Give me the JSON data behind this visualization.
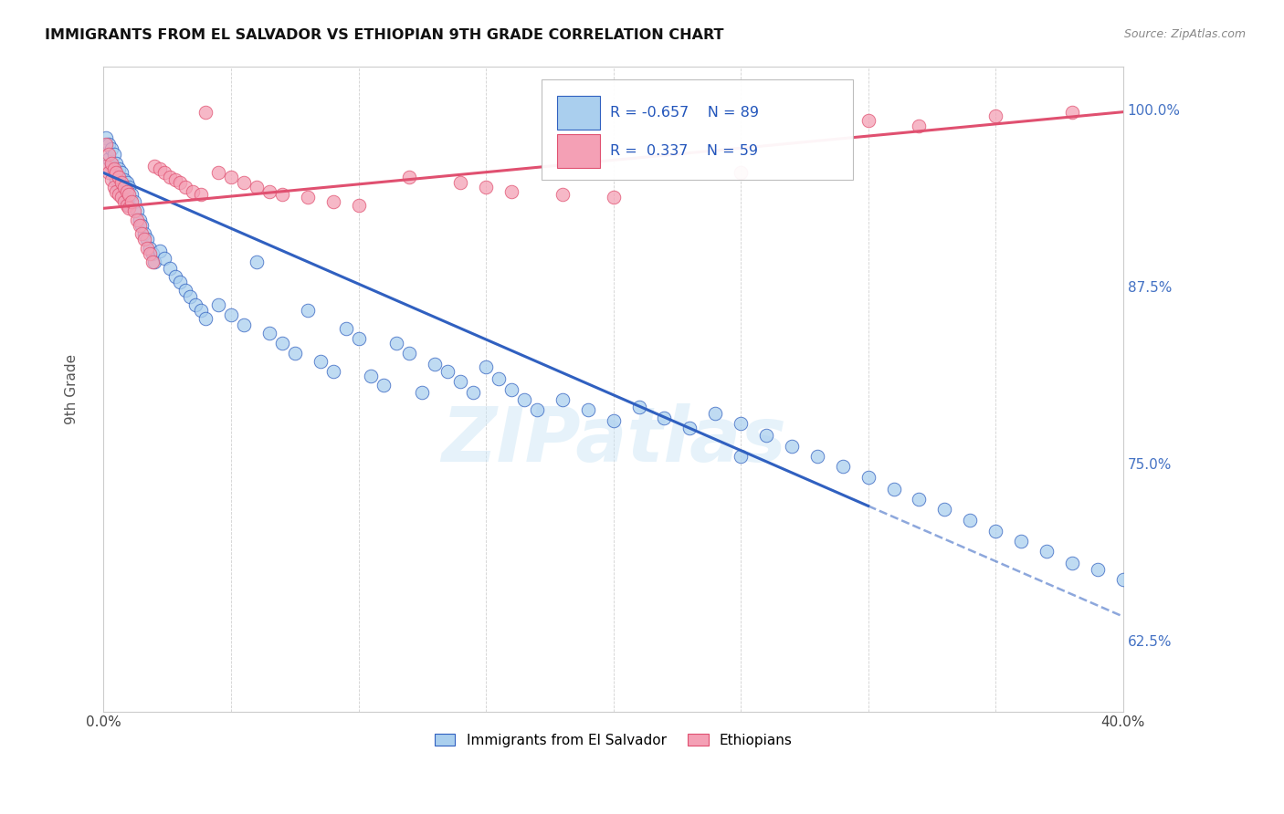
{
  "title": "IMMIGRANTS FROM EL SALVADOR VS ETHIOPIAN 9TH GRADE CORRELATION CHART",
  "source": "Source: ZipAtlas.com",
  "xlabel_bottom": "Immigrants from El Salvador",
  "ylabel": "9th Grade",
  "legend_label_blue": "Immigrants from El Salvador",
  "legend_label_pink": "Ethiopians",
  "r_blue": -0.657,
  "n_blue": 89,
  "r_pink": 0.337,
  "n_pink": 59,
  "blue_color": "#aacfee",
  "pink_color": "#f4a0b5",
  "blue_line_color": "#3060c0",
  "pink_line_color": "#e05070",
  "watermark": "ZIPatlas",
  "xlim": [
    0.0,
    0.4
  ],
  "ylim": [
    0.575,
    1.03
  ],
  "y_ticks_right": [
    0.625,
    0.75,
    0.875,
    1.0
  ],
  "y_tick_labels_right": [
    "62.5%",
    "75.0%",
    "87.5%",
    "100.0%"
  ],
  "blue_scatter_x": [
    0.001,
    0.002,
    0.002,
    0.003,
    0.003,
    0.004,
    0.004,
    0.005,
    0.005,
    0.006,
    0.006,
    0.007,
    0.007,
    0.008,
    0.008,
    0.009,
    0.009,
    0.01,
    0.01,
    0.011,
    0.012,
    0.013,
    0.014,
    0.015,
    0.016,
    0.017,
    0.018,
    0.019,
    0.02,
    0.022,
    0.024,
    0.026,
    0.028,
    0.03,
    0.032,
    0.034,
    0.036,
    0.038,
    0.04,
    0.045,
    0.05,
    0.055,
    0.06,
    0.065,
    0.07,
    0.075,
    0.08,
    0.085,
    0.09,
    0.095,
    0.1,
    0.105,
    0.11,
    0.115,
    0.12,
    0.125,
    0.13,
    0.135,
    0.14,
    0.145,
    0.15,
    0.155,
    0.16,
    0.165,
    0.17,
    0.18,
    0.19,
    0.2,
    0.21,
    0.22,
    0.23,
    0.24,
    0.25,
    0.26,
    0.27,
    0.28,
    0.29,
    0.3,
    0.31,
    0.32,
    0.33,
    0.34,
    0.35,
    0.36,
    0.37,
    0.38,
    0.39,
    0.4,
    0.25
  ],
  "blue_scatter_y": [
    0.98,
    0.975,
    0.965,
    0.972,
    0.96,
    0.968,
    0.955,
    0.962,
    0.95,
    0.958,
    0.945,
    0.955,
    0.942,
    0.95,
    0.938,
    0.948,
    0.935,
    0.945,
    0.932,
    0.94,
    0.935,
    0.928,
    0.922,
    0.918,
    0.912,
    0.908,
    0.902,
    0.898,
    0.892,
    0.9,
    0.895,
    0.888,
    0.882,
    0.878,
    0.872,
    0.868,
    0.862,
    0.858,
    0.852,
    0.862,
    0.855,
    0.848,
    0.892,
    0.842,
    0.835,
    0.828,
    0.858,
    0.822,
    0.815,
    0.845,
    0.838,
    0.812,
    0.805,
    0.835,
    0.828,
    0.8,
    0.82,
    0.815,
    0.808,
    0.8,
    0.818,
    0.81,
    0.802,
    0.795,
    0.788,
    0.795,
    0.788,
    0.78,
    0.79,
    0.782,
    0.775,
    0.785,
    0.778,
    0.77,
    0.762,
    0.755,
    0.748,
    0.74,
    0.732,
    0.725,
    0.718,
    0.71,
    0.702,
    0.695,
    0.688,
    0.68,
    0.675,
    0.668,
    0.755
  ],
  "pink_scatter_x": [
    0.001,
    0.001,
    0.002,
    0.002,
    0.003,
    0.003,
    0.004,
    0.004,
    0.005,
    0.005,
    0.006,
    0.006,
    0.007,
    0.007,
    0.008,
    0.008,
    0.009,
    0.009,
    0.01,
    0.01,
    0.011,
    0.012,
    0.013,
    0.014,
    0.015,
    0.016,
    0.017,
    0.018,
    0.019,
    0.02,
    0.022,
    0.024,
    0.026,
    0.028,
    0.03,
    0.032,
    0.035,
    0.038,
    0.04,
    0.045,
    0.05,
    0.055,
    0.06,
    0.065,
    0.07,
    0.08,
    0.09,
    0.1,
    0.12,
    0.14,
    0.15,
    0.16,
    0.18,
    0.2,
    0.25,
    0.3,
    0.32,
    0.35,
    0.38
  ],
  "pink_scatter_y": [
    0.975,
    0.96,
    0.968,
    0.955,
    0.962,
    0.95,
    0.958,
    0.945,
    0.955,
    0.942,
    0.952,
    0.94,
    0.948,
    0.938,
    0.945,
    0.935,
    0.942,
    0.932,
    0.94,
    0.93,
    0.935,
    0.928,
    0.922,
    0.918,
    0.912,
    0.908,
    0.902,
    0.898,
    0.892,
    0.96,
    0.958,
    0.955,
    0.952,
    0.95,
    0.948,
    0.945,
    0.942,
    0.94,
    0.998,
    0.955,
    0.952,
    0.948,
    0.945,
    0.942,
    0.94,
    0.938,
    0.935,
    0.932,
    0.952,
    0.948,
    0.945,
    0.942,
    0.94,
    0.938,
    0.955,
    0.992,
    0.988,
    0.995,
    0.998
  ],
  "blue_line_x_start": 0.0,
  "blue_line_x_solid_end": 0.3,
  "blue_line_x_end": 0.4,
  "blue_line_y_at_0": 0.955,
  "blue_line_y_at_030": 0.72,
  "blue_line_y_at_040": 0.642,
  "pink_line_y_at_0": 0.93,
  "pink_line_y_at_040": 0.998
}
